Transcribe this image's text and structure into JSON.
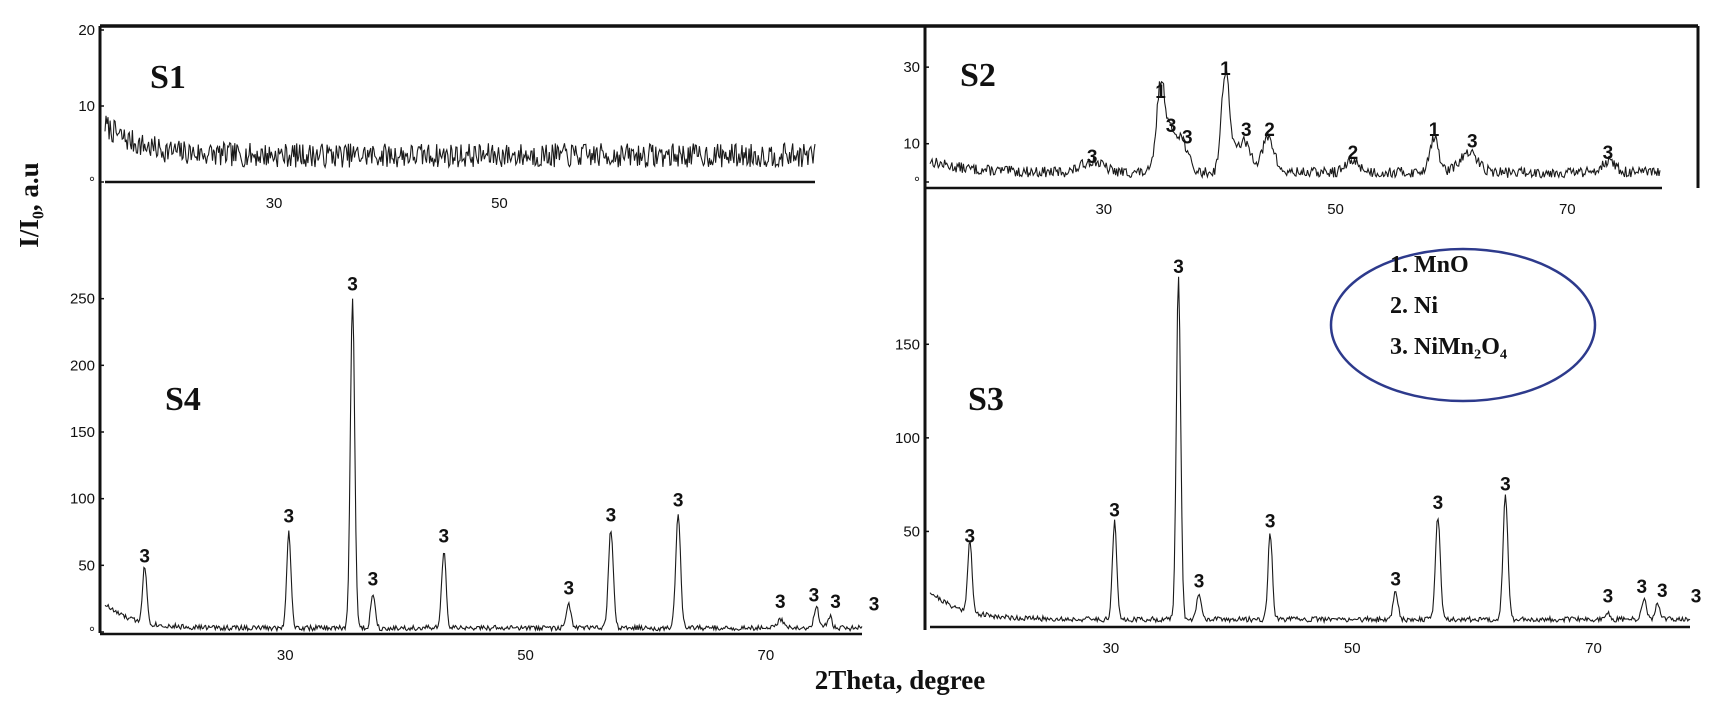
{
  "chart_data": {
    "type": "line",
    "xlabel": "2Theta, degree",
    "ylabel": "I/I₀, a.u",
    "legend": {
      "placement": "right-middle",
      "items": [
        "1. MnO",
        "2. Ni",
        "3. NiMn₂O₄"
      ],
      "border_color": "#2d3a8c"
    },
    "line_color": "#1a1a1a",
    "panels": [
      {
        "id": "S1",
        "label": "S1",
        "xlim": [
          15,
          78
        ],
        "ylim": [
          0,
          20
        ],
        "xticks": [
          30,
          50
        ],
        "yticks": [
          0,
          10,
          20
        ],
        "ytick_labels": [
          "°",
          "10",
          "20"
        ],
        "baseline": 3.5,
        "noise": 1.6,
        "seed": 7,
        "low_angle": {
          "amplitude": 4,
          "decay": 3
        },
        "peaks": [],
        "annotations": []
      },
      {
        "id": "S2",
        "label": "S2",
        "xlim": [
          15,
          78
        ],
        "ylim": [
          0,
          35
        ],
        "xticks": [
          30,
          50,
          70
        ],
        "yticks": [
          0,
          10,
          30
        ],
        "ytick_labels": [
          "°",
          "10",
          "30"
        ],
        "baseline": 2.5,
        "noise": 1.4,
        "seed": 13,
        "low_angle": {
          "amplitude": 3,
          "decay": 3
        },
        "peaks": [
          {
            "x": 29.0,
            "y": 3,
            "w": 0.9
          },
          {
            "x": 34.9,
            "y": 20,
            "w": 0.35
          },
          {
            "x": 35.7,
            "y": 10,
            "w": 0.6
          },
          {
            "x": 36.8,
            "y": 7,
            "w": 0.5
          },
          {
            "x": 40.5,
            "y": 26,
            "w": 0.35
          },
          {
            "x": 42.0,
            "y": 8,
            "w": 0.7
          },
          {
            "x": 44.2,
            "y": 9,
            "w": 0.5
          },
          {
            "x": 51.5,
            "y": 3,
            "w": 0.6
          },
          {
            "x": 58.5,
            "y": 9,
            "w": 0.4
          },
          {
            "x": 61.5,
            "y": 5,
            "w": 0.8
          },
          {
            "x": 73.5,
            "y": 3,
            "w": 0.6
          }
        ],
        "annotations": [
          {
            "x": 29.0,
            "y": 5,
            "text": "3"
          },
          {
            "x": 34.9,
            "y": 22,
            "text": "1"
          },
          {
            "x": 35.8,
            "y": 13,
            "text": "3"
          },
          {
            "x": 37.2,
            "y": 10,
            "text": "3"
          },
          {
            "x": 40.5,
            "y": 28,
            "text": "1"
          },
          {
            "x": 42.3,
            "y": 12,
            "text": "3"
          },
          {
            "x": 44.3,
            "y": 12,
            "text": "2"
          },
          {
            "x": 51.5,
            "y": 6,
            "text": "2"
          },
          {
            "x": 58.5,
            "y": 12,
            "text": "1"
          },
          {
            "x": 61.8,
            "y": 9,
            "text": "3"
          },
          {
            "x": 73.5,
            "y": 6,
            "text": "3"
          }
        ]
      },
      {
        "id": "S3",
        "label": "S3",
        "xlim": [
          15,
          78
        ],
        "ylim": [
          0,
          210
        ],
        "xticks": [
          30,
          50,
          70
        ],
        "yticks": [
          50,
          100,
          150
        ],
        "ytick_labels": [
          "50",
          "100",
          "150"
        ],
        "baseline": 3,
        "noise": 1.4,
        "seed": 21,
        "low_angle": {
          "amplitude": 15,
          "decay": 2.5
        },
        "peaks": [
          {
            "x": 18.3,
            "y": 38,
            "w": 0.18
          },
          {
            "x": 30.3,
            "y": 52,
            "w": 0.18
          },
          {
            "x": 35.6,
            "y": 182,
            "w": 0.18
          },
          {
            "x": 37.3,
            "y": 14,
            "w": 0.18
          },
          {
            "x": 43.2,
            "y": 46,
            "w": 0.18
          },
          {
            "x": 53.6,
            "y": 15,
            "w": 0.2
          },
          {
            "x": 57.1,
            "y": 55,
            "w": 0.2
          },
          {
            "x": 62.7,
            "y": 66,
            "w": 0.2
          },
          {
            "x": 71.2,
            "y": 3,
            "w": 0.2
          },
          {
            "x": 74.2,
            "y": 10,
            "w": 0.2
          },
          {
            "x": 75.3,
            "y": 8,
            "w": 0.2
          },
          {
            "x": 78.5,
            "y": 4,
            "w": 0.2
          }
        ],
        "annotations": [
          {
            "x": 18.3,
            "y": 44,
            "text": "3"
          },
          {
            "x": 30.3,
            "y": 58,
            "text": "3"
          },
          {
            "x": 35.6,
            "y": 188,
            "text": "3"
          },
          {
            "x": 37.3,
            "y": 20,
            "text": "3"
          },
          {
            "x": 43.2,
            "y": 52,
            "text": "3"
          },
          {
            "x": 53.6,
            "y": 21,
            "text": "3"
          },
          {
            "x": 57.1,
            "y": 62,
            "text": "3"
          },
          {
            "x": 62.7,
            "y": 72,
            "text": "3"
          },
          {
            "x": 71.2,
            "y": 12,
            "text": "3"
          },
          {
            "x": 74.0,
            "y": 17,
            "text": "3"
          },
          {
            "x": 75.7,
            "y": 15,
            "text": "3"
          },
          {
            "x": 78.5,
            "y": 12,
            "text": "3"
          }
        ]
      },
      {
        "id": "S4",
        "label": "S4",
        "xlim": [
          15,
          78
        ],
        "ylim": [
          0,
          300
        ],
        "xticks": [
          30,
          50,
          70
        ],
        "yticks": [
          0,
          50,
          100,
          150,
          200,
          250
        ],
        "ytick_labels": [
          "°",
          "50",
          "100",
          "150",
          "200",
          "250"
        ],
        "baseline": 3,
        "noise": 2,
        "seed": 33,
        "low_angle": {
          "amplitude": 18,
          "decay": 2.2
        },
        "peaks": [
          {
            "x": 18.3,
            "y": 42,
            "w": 0.18
          },
          {
            "x": 30.3,
            "y": 72,
            "w": 0.18
          },
          {
            "x": 35.6,
            "y": 248,
            "w": 0.18
          },
          {
            "x": 37.3,
            "y": 26,
            "w": 0.18
          },
          {
            "x": 43.2,
            "y": 58,
            "w": 0.18
          },
          {
            "x": 53.6,
            "y": 17,
            "w": 0.2
          },
          {
            "x": 57.1,
            "y": 74,
            "w": 0.2
          },
          {
            "x": 62.7,
            "y": 85,
            "w": 0.2
          },
          {
            "x": 71.2,
            "y": 6,
            "w": 0.25
          },
          {
            "x": 74.2,
            "y": 16,
            "w": 0.2
          },
          {
            "x": 75.3,
            "y": 9,
            "w": 0.2
          },
          {
            "x": 79.0,
            "y": 6,
            "w": 0.2
          }
        ],
        "annotations": [
          {
            "x": 18.3,
            "y": 52,
            "text": "3"
          },
          {
            "x": 30.3,
            "y": 82,
            "text": "3"
          },
          {
            "x": 35.6,
            "y": 256,
            "text": "3"
          },
          {
            "x": 37.3,
            "y": 35,
            "text": "3"
          },
          {
            "x": 43.2,
            "y": 67,
            "text": "3"
          },
          {
            "x": 53.6,
            "y": 28,
            "text": "3"
          },
          {
            "x": 57.1,
            "y": 83,
            "text": "3"
          },
          {
            "x": 62.7,
            "y": 94,
            "text": "3"
          },
          {
            "x": 71.2,
            "y": 18,
            "text": "3"
          },
          {
            "x": 74.0,
            "y": 23,
            "text": "3"
          },
          {
            "x": 75.8,
            "y": 18,
            "text": "3"
          },
          {
            "x": 79.0,
            "y": 16,
            "text": "3"
          }
        ]
      }
    ]
  }
}
